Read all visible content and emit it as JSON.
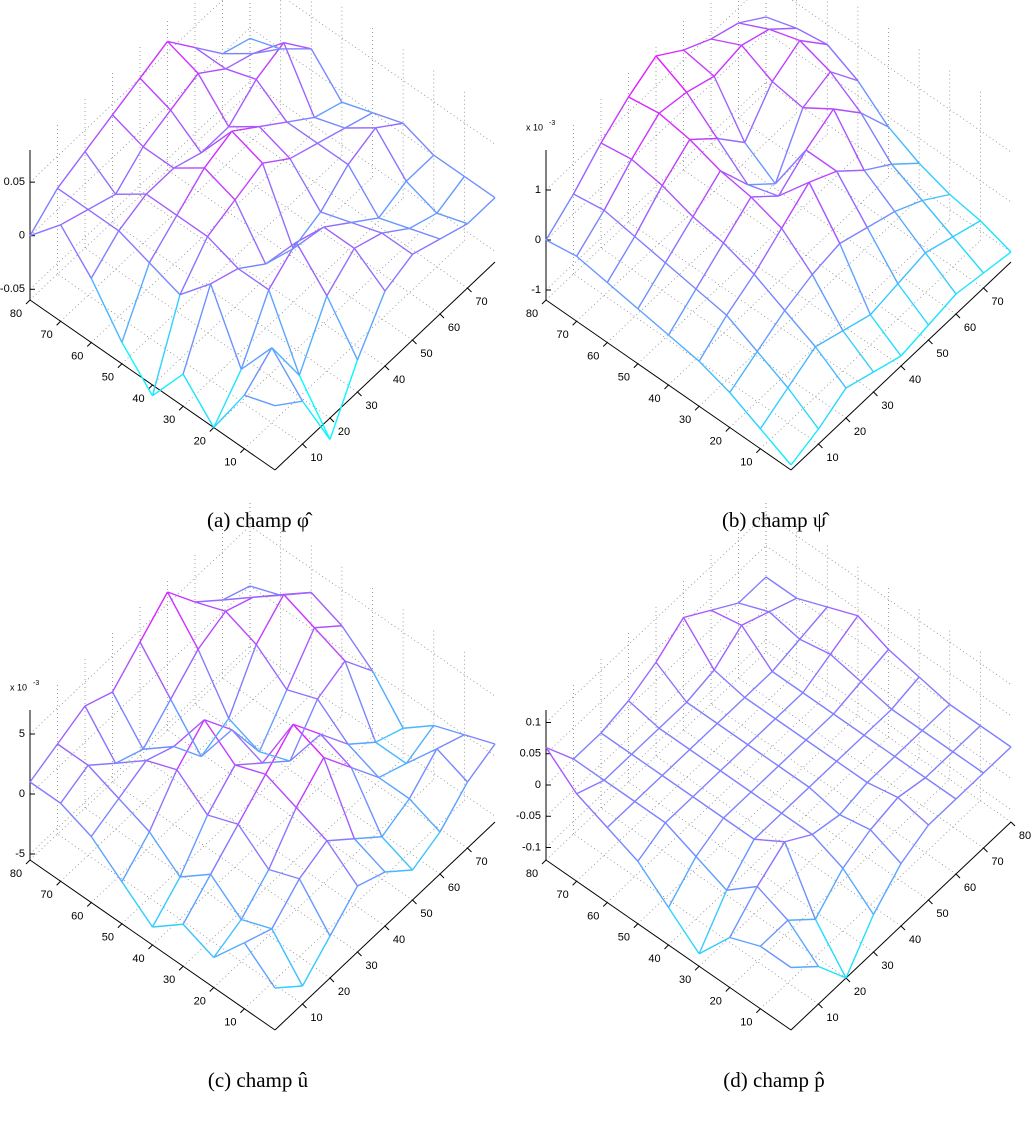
{
  "chart_data": [
    {
      "type": "surface",
      "caption": "(a) champ φ̂",
      "colormap": "cool",
      "xlim": [
        0,
        80
      ],
      "ylim": [
        0,
        80
      ],
      "zlim": [
        -0.06,
        0.08
      ],
      "xticks": [
        10,
        20,
        30,
        40,
        50,
        60,
        70
      ],
      "yticks": [
        10,
        20,
        30,
        40,
        50,
        60,
        70,
        80
      ],
      "zticks": [
        -0.05,
        0,
        0.05
      ],
      "x": [
        0,
        10,
        20,
        30,
        40,
        50,
        60,
        70,
        80
      ],
      "y": [
        0,
        10,
        20,
        30,
        40,
        50,
        60,
        70,
        80
      ],
      "z": [
        [
          0,
          -0.02,
          -0.08,
          -0.03,
          0.01,
          0.02,
          0.01,
          0,
          0
        ],
        [
          -0.01,
          0.01,
          -0.04,
          0.01,
          0.03,
          0.02,
          0,
          -0.01,
          0
        ],
        [
          -0.06,
          -0.03,
          0.02,
          0.04,
          0.03,
          0.01,
          -0.01,
          0,
          0
        ],
        [
          -0.03,
          0.03,
          0.02,
          0,
          -0.01,
          0,
          0.02,
          0.03,
          0.01
        ],
        [
          -0.07,
          0,
          0.03,
          0.04,
          0.05,
          0.03,
          0.02,
          0.01,
          0
        ],
        [
          -0.04,
          0.01,
          0.03,
          0.05,
          0.06,
          0.04,
          0.02,
          0,
          -0.01
        ],
        [
          0,
          0.02,
          0.03,
          0.03,
          0.02,
          0.02,
          0.04,
          0.05,
          0.02
        ],
        [
          0.03,
          0.02,
          0.01,
          0.03,
          0.04,
          0.05,
          0.03,
          0.02,
          0
        ],
        [
          0,
          0.02,
          0.03,
          0.04,
          0.05,
          0.06,
          0.03,
          0,
          -0.01
        ]
      ]
    },
    {
      "type": "surface",
      "caption": "(b) champ ψ̂",
      "colormap": "cool",
      "z_multiplier": {
        "label": "x 10",
        "exponent": "-3"
      },
      "xlim": [
        0,
        80
      ],
      "ylim": [
        0,
        80
      ],
      "zlim": [
        -1.2,
        1.8
      ],
      "xticks": [
        10,
        20,
        30,
        40,
        50,
        60,
        70
      ],
      "yticks": [
        10,
        20,
        30,
        40,
        50,
        60,
        70,
        80
      ],
      "zticks": [
        -1,
        0,
        1
      ],
      "x": [
        0,
        10,
        20,
        30,
        40,
        50,
        60,
        70,
        80
      ],
      "y": [
        0,
        10,
        20,
        30,
        40,
        50,
        60,
        70,
        80
      ],
      "z": [
        [
          -1.1,
          -0.9,
          -0.6,
          -0.8,
          -1.0,
          -0.9,
          -0.8,
          -0.9,
          -1.0
        ],
        [
          -0.8,
          -0.5,
          -0.2,
          -0.4,
          -0.6,
          -0.5,
          -0.4,
          -0.6,
          -0.8
        ],
        [
          -0.5,
          -0.2,
          0.1,
          0.3,
          0.4,
          0.2,
          0.0,
          -0.3,
          -0.7
        ],
        [
          -0.3,
          0.1,
          0.4,
          0.8,
          1.2,
          0.9,
          0.4,
          0.0,
          -0.5
        ],
        [
          -0.2,
          0.2,
          0.6,
          1.0,
          0.5,
          0.9,
          1.2,
          0.6,
          -0.2
        ],
        [
          -0.1,
          0.3,
          0.7,
          1.1,
          0.3,
          -0.2,
          0.8,
          1.0,
          0.3
        ],
        [
          0.0,
          0.4,
          0.9,
          1.3,
          0.8,
          0.2,
          0.9,
          1.2,
          0.6
        ],
        [
          0.1,
          0.5,
          1.0,
          1.4,
          1.3,
          1.1,
          1.2,
          1.0,
          0.5
        ],
        [
          0.0,
          0.4,
          0.9,
          1.3,
          1.6,
          1.2,
          0.9,
          0.7,
          0.3
        ]
      ]
    },
    {
      "type": "surface",
      "caption": "(c) champ û",
      "colormap": "cool",
      "z_multiplier": {
        "label": "x 10",
        "exponent": "-3"
      },
      "xlim": [
        0,
        80
      ],
      "ylim": [
        0,
        80
      ],
      "zlim": [
        -5.5,
        7
      ],
      "xticks": [
        10,
        20,
        30,
        40,
        50,
        60,
        70
      ],
      "yticks": [
        10,
        20,
        30,
        40,
        50,
        60,
        70,
        80
      ],
      "zticks": [
        -5,
        0,
        5
      ],
      "x": [
        0,
        10,
        20,
        30,
        40,
        50,
        60,
        70,
        80
      ],
      "y": [
        0,
        10,
        20,
        30,
        40,
        50,
        60,
        70,
        80
      ],
      "z": [
        [
          -2,
          -4,
          -2,
          0,
          -1,
          -3,
          -2,
          0,
          1
        ],
        [
          0,
          -1,
          1,
          2,
          0,
          -2,
          -1,
          1,
          0
        ],
        [
          -3,
          -2,
          0,
          3,
          5,
          2,
          -1,
          -2,
          -1
        ],
        [
          -2,
          0,
          2,
          4,
          6,
          3,
          0,
          -2,
          -3
        ],
        [
          -4,
          -2,
          1,
          3,
          1,
          -1,
          2,
          3,
          0
        ],
        [
          -2,
          0,
          3,
          5,
          2,
          -2,
          1,
          4,
          2
        ],
        [
          0,
          1,
          2,
          1,
          -2,
          -1,
          3,
          5,
          3
        ],
        [
          1,
          2,
          0,
          -1,
          1,
          3,
          4,
          3,
          1
        ],
        [
          1,
          2,
          3,
          2,
          4,
          6,
          3,
          1,
          0
        ]
      ]
    },
    {
      "type": "surface",
      "caption": "(d) champ p̂",
      "colormap": "cool",
      "xlim": [
        0,
        80
      ],
      "ylim": [
        0,
        80
      ],
      "zlim": [
        -0.12,
        0.12
      ],
      "xticks": [
        10,
        20,
        30,
        40,
        50,
        60,
        70,
        80
      ],
      "yticks": [
        10,
        20,
        30,
        40,
        50,
        60,
        70,
        80
      ],
      "zticks": [
        -0.1,
        -0.05,
        0,
        0.05,
        0.1
      ],
      "x": [
        0,
        10,
        20,
        30,
        40,
        50,
        60,
        70,
        80
      ],
      "y": [
        0,
        10,
        20,
        30,
        40,
        50,
        60,
        70,
        80
      ],
      "z": [
        [
          -0.02,
          -0.06,
          -0.12,
          -0.06,
          -0.02,
          0,
          0,
          0,
          0
        ],
        [
          -0.02,
          -0.02,
          -0.06,
          -0.02,
          0,
          0.01,
          0,
          0,
          0
        ],
        [
          -0.04,
          0,
          0.03,
          0,
          -0.01,
          0,
          0,
          0,
          0
        ],
        [
          -0.1,
          -0.04,
          0,
          0,
          0,
          0,
          0,
          0,
          0.01
        ],
        [
          -0.06,
          -0.02,
          0,
          0,
          0,
          0,
          0,
          0.01,
          0.02
        ],
        [
          -0.02,
          0,
          0,
          0,
          0,
          0,
          0,
          0.02,
          0.04
        ],
        [
          0,
          0,
          0,
          0,
          0,
          0,
          0,
          0.01,
          0.02
        ],
        [
          0.02,
          0,
          0,
          0,
          0,
          0.01,
          0.04,
          0.02,
          0
        ],
        [
          0.06,
          0,
          0,
          0.01,
          0.03,
          0.06,
          0.03,
          0,
          0
        ]
      ]
    }
  ]
}
